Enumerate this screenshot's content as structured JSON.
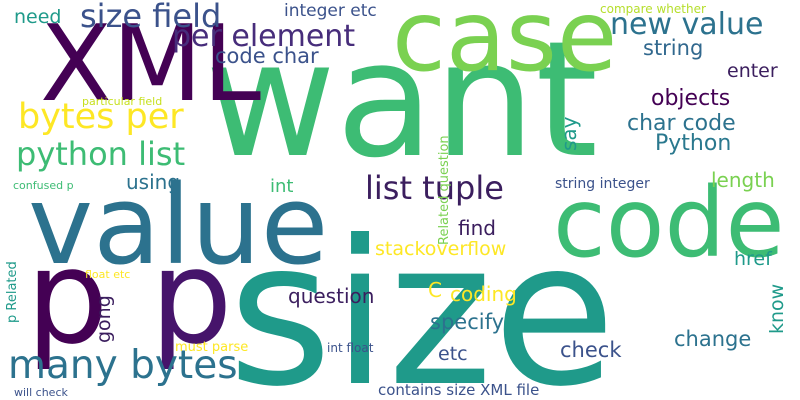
{
  "word_cloud": {
    "words": [
      {
        "id": "want",
        "text": "want",
        "color": "#3dbc74"
      },
      {
        "id": "size",
        "text": "size",
        "color": "#1f9a8a"
      },
      {
        "id": "value",
        "text": "value",
        "color": "#2c728e"
      },
      {
        "id": "xml",
        "text": "XML",
        "color": "#440154"
      },
      {
        "id": "case",
        "text": "case",
        "color": "#7ad151"
      },
      {
        "id": "code",
        "text": "code",
        "color": "#3dbc74"
      },
      {
        "id": "p-1",
        "text": "p",
        "color": "#440154"
      },
      {
        "id": "p-2",
        "text": "p",
        "color": "#46146b"
      },
      {
        "id": "many-bytes",
        "text": "many bytes",
        "color": "#2c728e"
      },
      {
        "id": "bytes-per",
        "text": "bytes per",
        "color": "#fde725"
      },
      {
        "id": "python-list",
        "text": "python list",
        "color": "#3dbc74"
      },
      {
        "id": "size-field",
        "text": "size field",
        "color": "#3b528b"
      },
      {
        "id": "per-element",
        "text": "per element",
        "color": "#472d7b"
      },
      {
        "id": "new-value",
        "text": "new value",
        "color": "#2c728e"
      },
      {
        "id": "list-tuple",
        "text": "list tuple",
        "color": "#3b1e5e"
      },
      {
        "id": "code-char",
        "text": "code char",
        "color": "#3b528b"
      },
      {
        "id": "need",
        "text": "need",
        "color": "#1f9a8a"
      },
      {
        "id": "integer-etc",
        "text": "integer etc",
        "color": "#3b528b"
      },
      {
        "id": "compare-whether",
        "text": "compare whether",
        "color": "#b5de2b"
      },
      {
        "id": "string",
        "text": "string",
        "color": "#31688e"
      },
      {
        "id": "enter",
        "text": "enter",
        "color": "#3b1e5e"
      },
      {
        "id": "objects",
        "text": "objects",
        "color": "#440154"
      },
      {
        "id": "char-code",
        "text": "char code",
        "color": "#2c728e"
      },
      {
        "id": "python",
        "text": "Python",
        "color": "#2a788e"
      },
      {
        "id": "say",
        "text": "say",
        "color": "#1f9a8a"
      },
      {
        "id": "particular-field",
        "text": "particular field",
        "color": "#c7e020"
      },
      {
        "id": "related-question-v",
        "text": "Related question",
        "color": "#7ad151"
      },
      {
        "id": "using",
        "text": "using",
        "color": "#2c728e"
      },
      {
        "id": "int",
        "text": "int",
        "color": "#3dbc74"
      },
      {
        "id": "string-integer",
        "text": "string integer",
        "color": "#3b528b"
      },
      {
        "id": "length",
        "text": "length",
        "color": "#7ad151"
      },
      {
        "id": "confused-p",
        "text": "confused p",
        "color": "#3dbc74"
      },
      {
        "id": "find",
        "text": "find",
        "color": "#3b1e5e"
      },
      {
        "id": "stackoverflow",
        "text": "stackoverflow",
        "color": "#fde725"
      },
      {
        "id": "href",
        "text": "href",
        "color": "#1f9a8a"
      },
      {
        "id": "p-related",
        "text": "p Related",
        "color": "#1f9a8a"
      },
      {
        "id": "float-etc",
        "text": "float etc",
        "color": "#fde725"
      },
      {
        "id": "gong",
        "text": "gong",
        "color": "#3b1e5e"
      },
      {
        "id": "question",
        "text": "question",
        "color": "#3b1e5e"
      },
      {
        "id": "c",
        "text": "C",
        "color": "#fde725"
      },
      {
        "id": "coding",
        "text": "coding",
        "color": "#fde725"
      },
      {
        "id": "know",
        "text": "know",
        "color": "#1f9a8a"
      },
      {
        "id": "specify",
        "text": "specify",
        "color": "#2c728e"
      },
      {
        "id": "change",
        "text": "change",
        "color": "#2c728e"
      },
      {
        "id": "check",
        "text": "check",
        "color": "#3b528b"
      },
      {
        "id": "etc",
        "text": "etc",
        "color": "#3b528b"
      },
      {
        "id": "must-parse",
        "text": "must parse",
        "color": "#fde725"
      },
      {
        "id": "int-float",
        "text": "int float",
        "color": "#3b528b"
      },
      {
        "id": "will-check",
        "text": "will check",
        "color": "#3b528b"
      },
      {
        "id": "contains-size-xml-file",
        "text": "contains size XML file",
        "color": "#3b528b"
      }
    ]
  }
}
